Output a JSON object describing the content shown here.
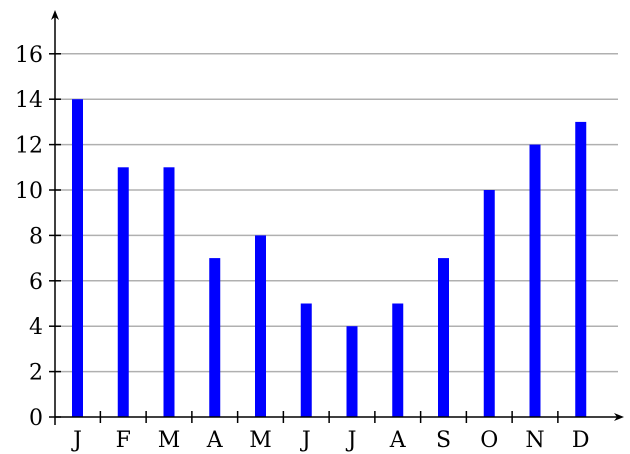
{
  "chart_data": {
    "type": "bar",
    "categories": [
      "J",
      "F",
      "M",
      "A",
      "M",
      "J",
      "J",
      "A",
      "S",
      "O",
      "N",
      "D"
    ],
    "values": [
      14,
      11,
      11,
      7,
      8,
      5,
      4,
      5,
      7,
      10,
      12,
      13
    ],
    "title": "",
    "xlabel": "",
    "ylabel": "",
    "ylim": [
      0,
      17.5
    ],
    "yticks": [
      0,
      2,
      4,
      6,
      8,
      10,
      12,
      14,
      16
    ],
    "grid": "horizontal",
    "legend": "none",
    "colors": {
      "bar": "#0000ff",
      "grid": "#b0b0b0",
      "axis": "#000000"
    }
  }
}
